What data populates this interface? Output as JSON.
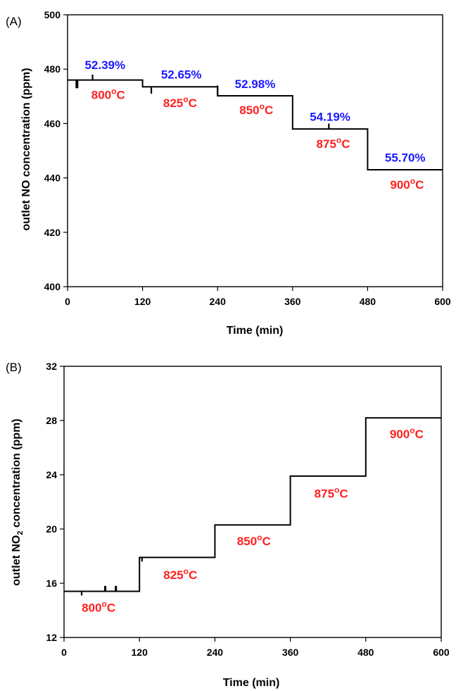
{
  "chart_data": [
    {
      "type": "line",
      "panel_label": "(A)",
      "xlabel": "Time (min)",
      "ylabel": "outlet  NO concentration (ppm)",
      "ylabel_main": "outlet  NO concentration (ppm)",
      "ylabel_sub": "",
      "ylabel_suffix": "",
      "xlim": [
        0,
        600
      ],
      "ylim": [
        400,
        500
      ],
      "xticks": [
        0,
        120,
        240,
        360,
        480,
        600
      ],
      "yticks": [
        400,
        420,
        440,
        460,
        480,
        500
      ],
      "grid": false,
      "series": [
        {
          "x": [
            0,
            120,
            120,
            240,
            240,
            360,
            360,
            480,
            480,
            600
          ],
          "y": [
            476,
            476,
            473.5,
            473.5,
            470.2,
            470.2,
            458,
            458,
            443,
            443
          ]
        }
      ],
      "spikes": [
        {
          "x": 14,
          "y0": 476,
          "y1": 473
        },
        {
          "x": 16,
          "y0": 476,
          "y1": 473
        },
        {
          "x": 40,
          "y0": 476,
          "y1": 478
        },
        {
          "x": 134,
          "y0": 473.5,
          "y1": 471
        },
        {
          "x": 240,
          "y0": 470.2,
          "y1": 474
        },
        {
          "x": 418,
          "y0": 458,
          "y1": 460
        }
      ],
      "annotations": [
        {
          "text": "52.39%",
          "color": "#1a1aff",
          "x": 60,
          "y": 480
        },
        {
          "text": "800°C",
          "color": "#ff2020",
          "x": 65,
          "y": 469,
          "deg": true
        },
        {
          "text": "52.65%",
          "color": "#1a1aff",
          "x": 182,
          "y": 476.5
        },
        {
          "text": "825°C",
          "color": "#ff2020",
          "x": 180,
          "y": 466,
          "deg": true
        },
        {
          "text": "52.98%",
          "color": "#1a1aff",
          "x": 300,
          "y": 473
        },
        {
          "text": "850°C",
          "color": "#ff2020",
          "x": 302,
          "y": 463.5,
          "deg": true
        },
        {
          "text": "54.19%",
          "color": "#1a1aff",
          "x": 420,
          "y": 461
        },
        {
          "text": "875°C",
          "color": "#ff2020",
          "x": 425,
          "y": 451,
          "deg": true
        },
        {
          "text": "55.70%",
          "color": "#1a1aff",
          "x": 540,
          "y": 446
        },
        {
          "text": "900°C",
          "color": "#ff2020",
          "x": 543,
          "y": 436,
          "deg": true
        }
      ]
    },
    {
      "type": "line",
      "panel_label": "(B)",
      "xlabel": "Time (min)",
      "ylabel": "outlet  NO2 concentration (ppm)",
      "ylabel_main": "outlet  NO",
      "ylabel_sub": "2",
      "ylabel_suffix": " concentration (ppm)",
      "xlim": [
        0,
        600
      ],
      "ylim": [
        12,
        32
      ],
      "xticks": [
        0,
        120,
        240,
        360,
        480,
        600
      ],
      "yticks": [
        12,
        16,
        20,
        24,
        28,
        32
      ],
      "grid": false,
      "series": [
        {
          "x": [
            0,
            120,
            120,
            240,
            240,
            360,
            360,
            480,
            480,
            600
          ],
          "y": [
            15.4,
            15.4,
            17.9,
            17.9,
            20.3,
            20.3,
            23.9,
            23.9,
            28.2,
            28.2
          ]
        }
      ],
      "spikes": [
        {
          "x": 28,
          "y0": 15.4,
          "y1": 15.1
        },
        {
          "x": 65,
          "y0": 15.4,
          "y1": 15.8
        },
        {
          "x": 66,
          "y0": 15.4,
          "y1": 15.8
        },
        {
          "x": 82,
          "y0": 15.4,
          "y1": 15.8
        },
        {
          "x": 83,
          "y0": 15.4,
          "y1": 15.8
        },
        {
          "x": 124,
          "y0": 17.9,
          "y1": 17.6
        }
      ],
      "annotations": [
        {
          "text": "800°C",
          "color": "#ff2020",
          "x": 55,
          "y": 13.9,
          "deg": true
        },
        {
          "text": "825°C",
          "color": "#ff2020",
          "x": 185,
          "y": 16.3,
          "deg": true
        },
        {
          "text": "850°C",
          "color": "#ff2020",
          "x": 302,
          "y": 18.8,
          "deg": true
        },
        {
          "text": "875°C",
          "color": "#ff2020",
          "x": 425,
          "y": 22.3,
          "deg": true
        },
        {
          "text": "900°C",
          "color": "#ff2020",
          "x": 545,
          "y": 26.7,
          "deg": true
        }
      ]
    }
  ]
}
